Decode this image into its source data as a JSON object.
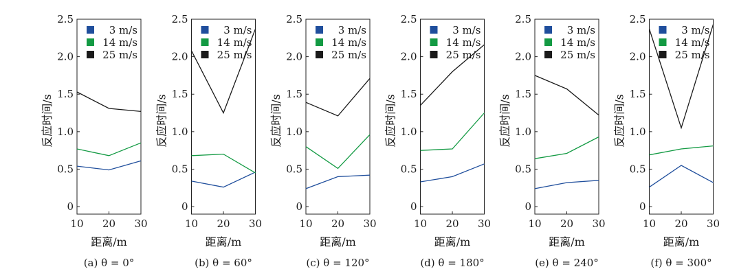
{
  "colors": {
    "s3": "#1f4e9c",
    "s14": "#139a43",
    "s25": "#1a1a1a"
  },
  "chart_data": [
    {
      "type": "line",
      "caption": "(a) θ = 0°",
      "xlabel": "距离/m",
      "ylabel": "反应时间/s",
      "x": [
        10,
        20,
        30
      ],
      "xlim": [
        10,
        30
      ],
      "ylim": [
        -0.1,
        2.5
      ],
      "xticks": [
        "10",
        "20",
        "30"
      ],
      "yticks": [
        "0",
        "0.5",
        "1.0",
        "1.5",
        "2.0",
        "2.5"
      ],
      "legend_position": "top-left",
      "grid": false,
      "series": [
        {
          "name": "3 m/s",
          "values": [
            0.54,
            0.49,
            0.61
          ]
        },
        {
          "name": "14 m/s",
          "values": [
            0.77,
            0.68,
            0.85
          ]
        },
        {
          "name": "25 m/s",
          "values": [
            1.53,
            1.31,
            1.27
          ]
        }
      ]
    },
    {
      "type": "line",
      "caption": "(b) θ = 60°",
      "xlabel": "距离/m",
      "ylabel": "反应时间/s",
      "x": [
        10,
        20,
        30
      ],
      "xlim": [
        10,
        30
      ],
      "ylim": [
        -0.1,
        2.5
      ],
      "xticks": [
        "10",
        "20",
        "30"
      ],
      "yticks": [
        "0",
        "0.5",
        "1.0",
        "1.5",
        "2.0",
        "2.5"
      ],
      "legend_position": "top-left",
      "grid": false,
      "series": [
        {
          "name": "3 m/s",
          "values": [
            0.34,
            0.26,
            0.46
          ]
        },
        {
          "name": "14 m/s",
          "values": [
            0.68,
            0.7,
            0.45
          ]
        },
        {
          "name": "25 m/s",
          "values": [
            2.08,
            1.25,
            2.37
          ]
        }
      ]
    },
    {
      "type": "line",
      "caption": "(c) θ = 120°",
      "xlabel": "距离/m",
      "ylabel": "反应时间/s",
      "x": [
        10,
        20,
        30
      ],
      "xlim": [
        10,
        30
      ],
      "ylim": [
        -0.1,
        2.5
      ],
      "xticks": [
        "10",
        "20",
        "30"
      ],
      "yticks": [
        "0",
        "0.5",
        "1.0",
        "1.5",
        "2.0",
        "2.5"
      ],
      "legend_position": "top-left",
      "grid": false,
      "series": [
        {
          "name": "3 m/s",
          "values": [
            0.24,
            0.4,
            0.42
          ]
        },
        {
          "name": "14 m/s",
          "values": [
            0.8,
            0.51,
            0.96
          ]
        },
        {
          "name": "25 m/s",
          "values": [
            1.39,
            1.21,
            1.71
          ]
        }
      ]
    },
    {
      "type": "line",
      "caption": "(d) θ = 180°",
      "xlabel": "距离/m",
      "ylabel": "反应时间/s",
      "x": [
        10,
        20,
        30
      ],
      "xlim": [
        10,
        30
      ],
      "ylim": [
        -0.1,
        2.5
      ],
      "xticks": [
        "10",
        "20",
        "30"
      ],
      "yticks": [
        "0",
        "0.5",
        "1.0",
        "1.5",
        "2.0",
        "2.5"
      ],
      "legend_position": "top-left",
      "grid": false,
      "series": [
        {
          "name": "3 m/s",
          "values": [
            0.33,
            0.4,
            0.57
          ]
        },
        {
          "name": "14 m/s",
          "values": [
            0.75,
            0.77,
            1.25
          ]
        },
        {
          "name": "25 m/s",
          "values": [
            1.35,
            1.8,
            2.16
          ]
        }
      ]
    },
    {
      "type": "line",
      "caption": "(e) θ = 240°",
      "xlabel": "距离/m",
      "ylabel": "反应时间/s",
      "x": [
        10,
        20,
        30
      ],
      "xlim": [
        10,
        30
      ],
      "ylim": [
        -0.1,
        2.5
      ],
      "xticks": [
        "10",
        "20",
        "30"
      ],
      "yticks": [
        "0",
        "0.5",
        "1.0",
        "1.5",
        "2.0",
        "2.5"
      ],
      "legend_position": "top-left",
      "grid": false,
      "series": [
        {
          "name": "3 m/s",
          "values": [
            0.24,
            0.32,
            0.35
          ]
        },
        {
          "name": "14 m/s",
          "values": [
            0.64,
            0.71,
            0.93
          ]
        },
        {
          "name": "25 m/s",
          "values": [
            1.75,
            1.57,
            1.22
          ]
        }
      ]
    },
    {
      "type": "line",
      "caption": "(f) θ = 300°",
      "xlabel": "距离/m",
      "ylabel": "反应时间/s",
      "x": [
        10,
        20,
        30
      ],
      "xlim": [
        10,
        30
      ],
      "ylim": [
        -0.1,
        2.5
      ],
      "xticks": [
        "10",
        "20",
        "30"
      ],
      "yticks": [
        "0",
        "0.5",
        "1.0",
        "1.5",
        "2.0",
        "2.5"
      ],
      "legend_position": "top-left",
      "grid": false,
      "series": [
        {
          "name": "3 m/s",
          "values": [
            0.26,
            0.55,
            0.32
          ]
        },
        {
          "name": "14 m/s",
          "values": [
            0.69,
            0.77,
            0.81
          ]
        },
        {
          "name": "25 m/s",
          "values": [
            2.37,
            1.05,
            2.43
          ]
        }
      ]
    }
  ]
}
